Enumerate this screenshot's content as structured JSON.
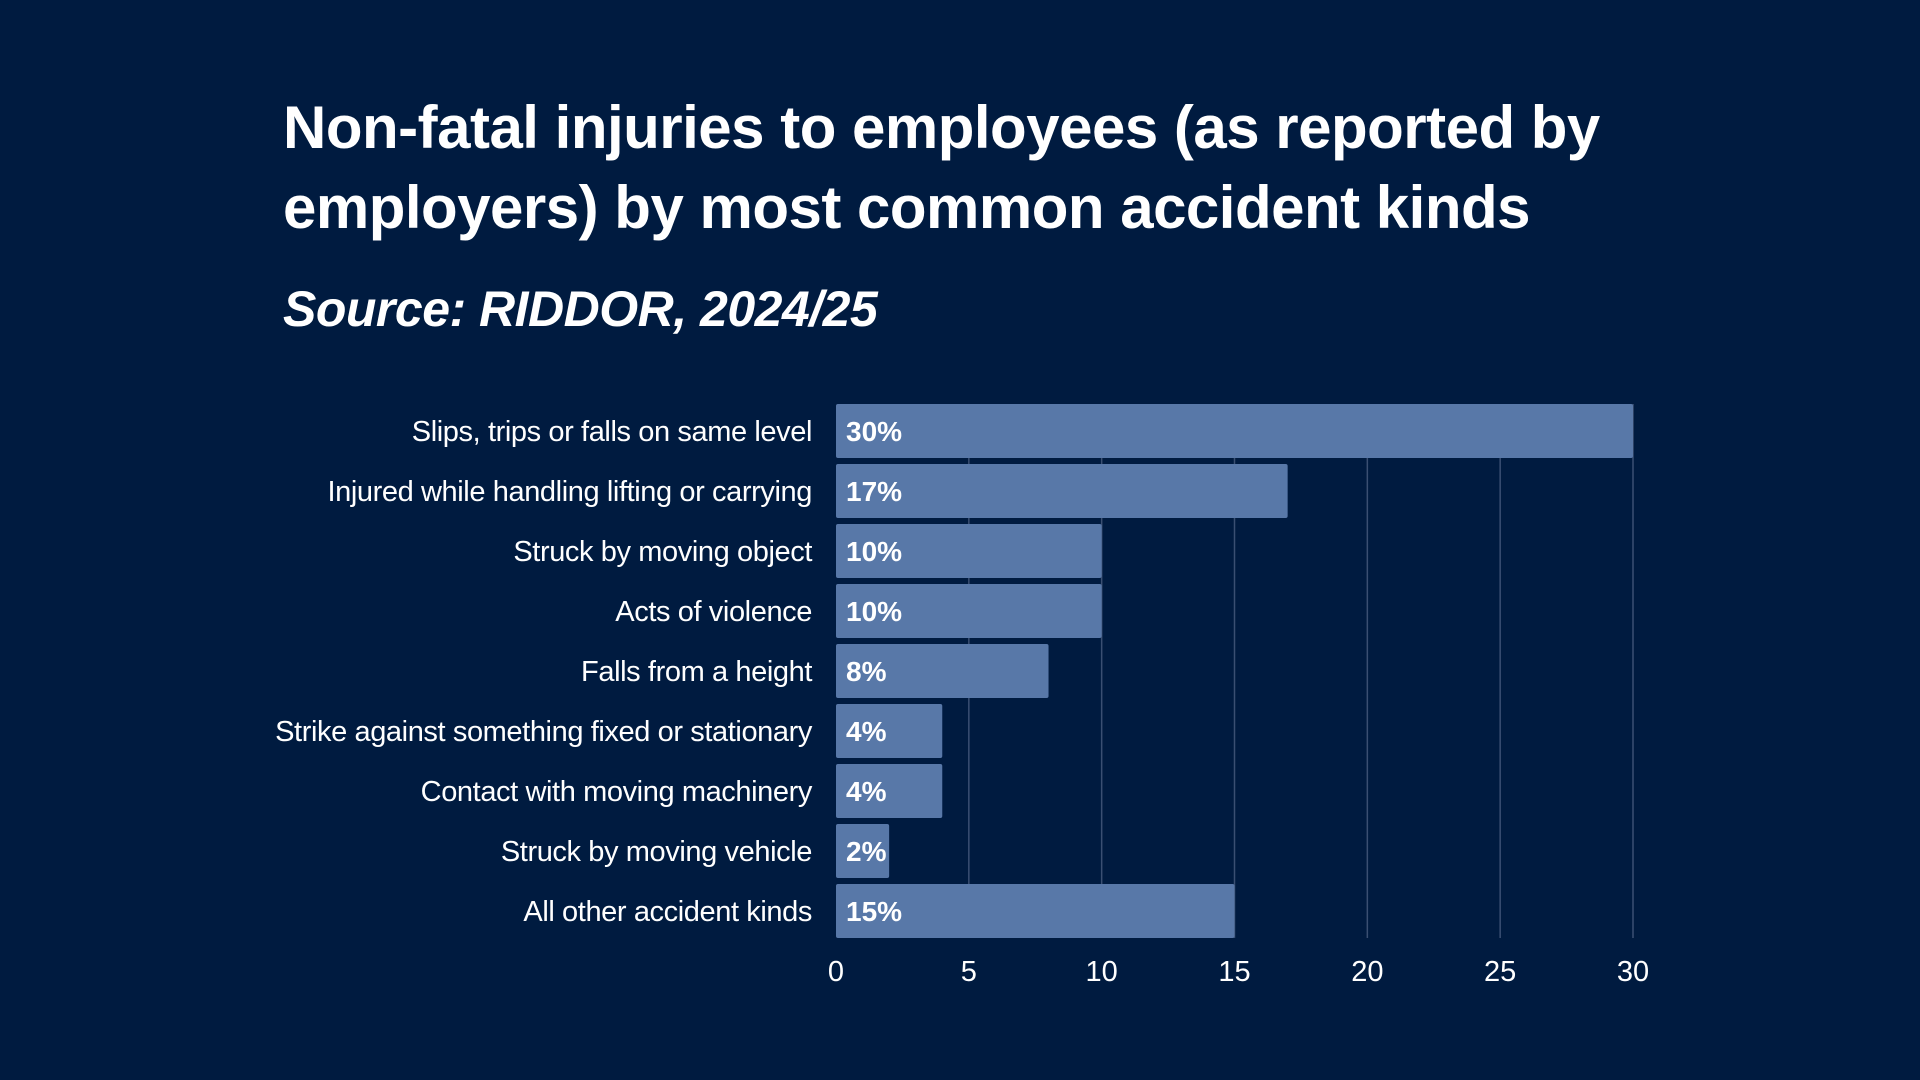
{
  "title": "Non-fatal injuries to employees (as reported by employers) by most common accident kinds",
  "subtitle": "Source: RIDDOR, 2024/25",
  "colors": {
    "background": "#001b40",
    "bar": "#5878a8",
    "gridline": "#3a4f72",
    "text": "#ffffff"
  },
  "chart_data": {
    "type": "bar",
    "orientation": "horizontal",
    "title": "Non-fatal injuries to employees (as reported by employers) by most common accident kinds",
    "subtitle": "Source: RIDDOR, 2024/25",
    "categories": [
      "Slips, trips or falls on same level",
      "Injured while handling lifting or carrying",
      "Struck by moving object",
      "Acts of violence",
      "Falls from a height",
      "Strike against something fixed or stationary",
      "Contact with moving machinery",
      "Struck by moving vehicle",
      "All other accident kinds"
    ],
    "values": [
      30,
      17,
      10,
      10,
      8,
      4,
      4,
      2,
      15
    ],
    "value_labels": [
      "30%",
      "17%",
      "10%",
      "10%",
      "8%",
      "4%",
      "4%",
      "2%",
      "15%"
    ],
    "xlim": [
      0,
      30
    ],
    "xticks": [
      0,
      5,
      10,
      15,
      20,
      25,
      30
    ],
    "xlabel": "",
    "ylabel": "",
    "grid": "vertical"
  }
}
